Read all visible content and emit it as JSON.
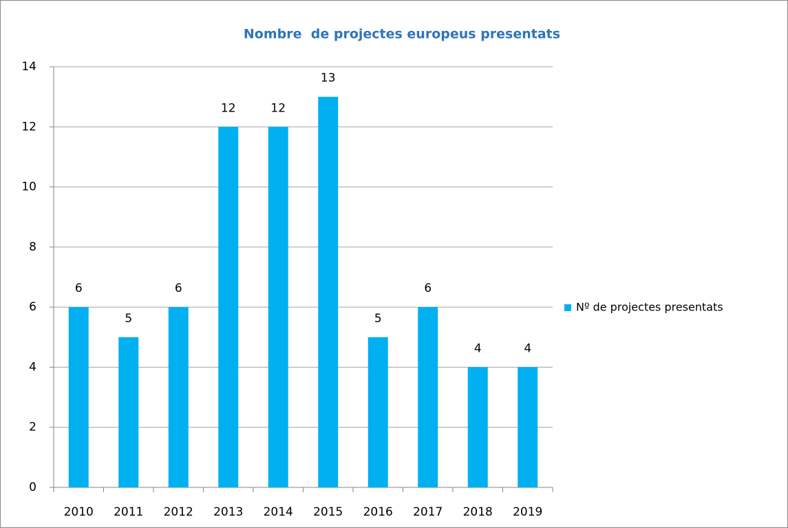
{
  "chart_data": {
    "type": "bar",
    "title": "Nombre  de projectes europeus presentats",
    "categories": [
      "2010",
      "2011",
      "2012",
      "2013",
      "2014",
      "2015",
      "2016",
      "2017",
      "2018",
      "2019"
    ],
    "series": [
      {
        "name": "Nº de projectes presentats",
        "color": "#00b0f0",
        "values": [
          6,
          5,
          6,
          12,
          12,
          13,
          5,
          6,
          4,
          4
        ]
      }
    ],
    "ylim": [
      0,
      14
    ],
    "yticks": [
      0,
      2,
      4,
      6,
      8,
      10,
      12,
      14
    ],
    "grid": true,
    "legend": "right"
  }
}
